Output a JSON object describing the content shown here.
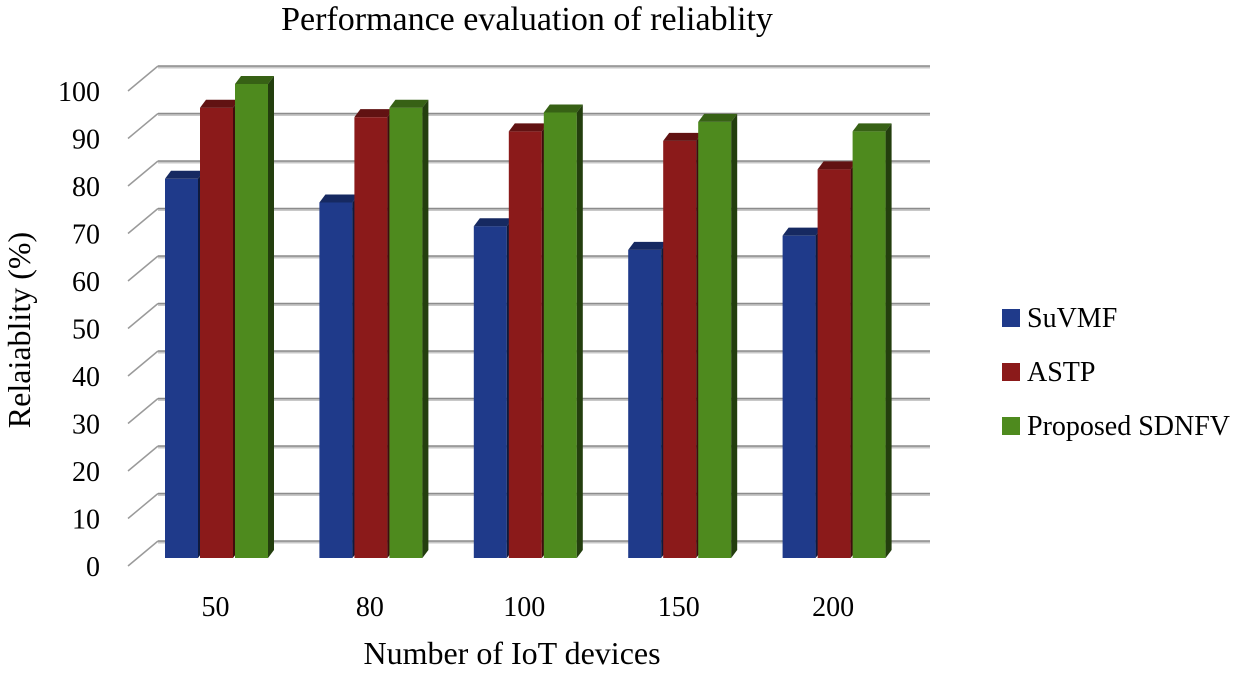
{
  "chart_data": {
    "type": "bar",
    "title": "Performance evaluation of reliablity",
    "xlabel": "Number of IoT devices",
    "ylabel": "Relaiablity (%)",
    "categories": [
      "50",
      "80",
      "100",
      "150",
      "200"
    ],
    "series": [
      {
        "name": "SuVMF",
        "values": [
          80,
          75,
          70,
          65,
          68
        ],
        "color": "#1F3A8A"
      },
      {
        "name": "ASTP",
        "values": [
          95,
          93,
          90,
          88,
          82
        ],
        "color": "#8B1A1A"
      },
      {
        "name": "Proposed SDNFV",
        "values": [
          100,
          95,
          94,
          92,
          90
        ],
        "color": "#4E8A1E"
      }
    ],
    "ylim": [
      0,
      100
    ],
    "yticks": [
      "0",
      "10",
      "20",
      "30",
      "40",
      "50",
      "60",
      "70",
      "80",
      "90",
      "100"
    ],
    "grid": true,
    "legend_position": "right",
    "style": "3d-clustered-column"
  }
}
